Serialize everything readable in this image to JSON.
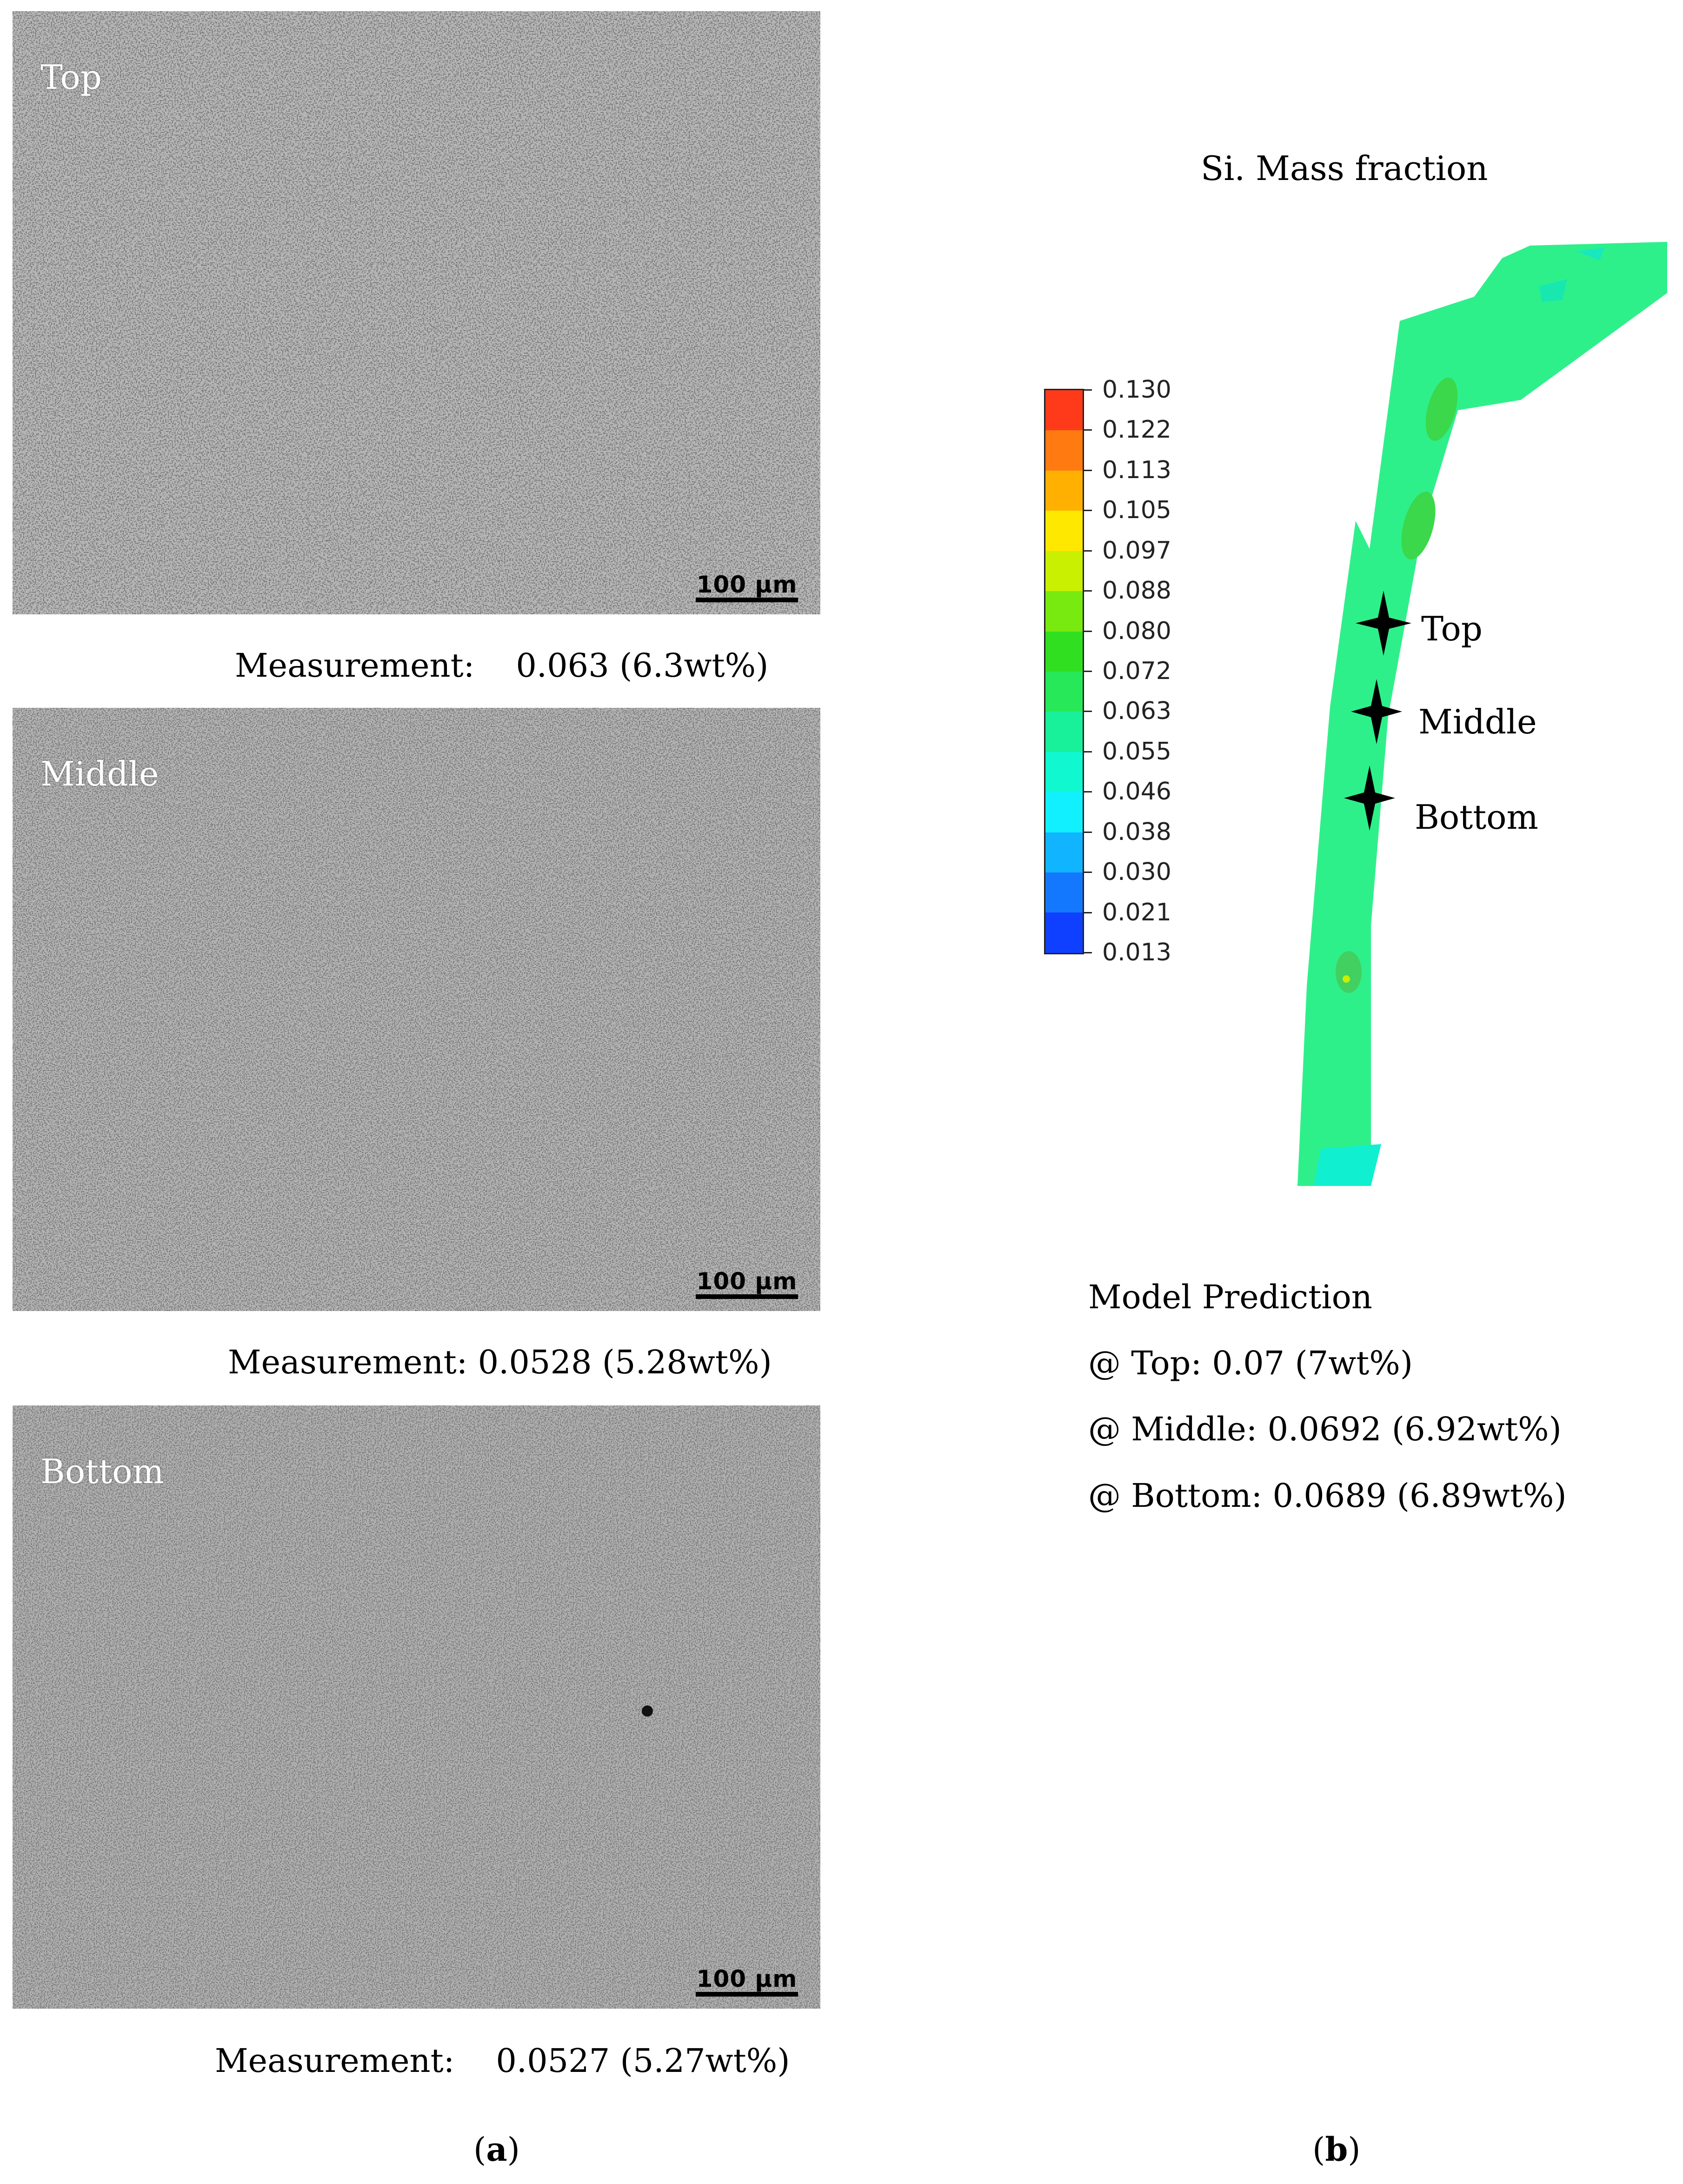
{
  "panel_a": {
    "images": [
      {
        "label": "Top",
        "scale_bar": "100 µm",
        "measurement": "Measurement:    0.063 (6.3wt%)",
        "measurement_value": 0.063
      },
      {
        "label": "Middle",
        "scale_bar": "100 µm",
        "measurement": "Measurement: 0.0528 (5.28wt%)",
        "measurement_value": 0.0528
      },
      {
        "label": "Bottom",
        "scale_bar": "100 µm",
        "measurement": "Measurement:    0.0527 (5.27wt%)",
        "measurement_value": 0.0527
      }
    ],
    "sublabel_open": "(",
    "sublabel_letter": "a",
    "sublabel_close": ")"
  },
  "panel_b": {
    "title": "Si. Mass fraction",
    "colorbar": {
      "ticks": [
        "0.130",
        "0.122",
        "0.113",
        "0.105",
        "0.097",
        "0.088",
        "0.080",
        "0.072",
        "0.063",
        "0.055",
        "0.046",
        "0.038",
        "0.030",
        "0.021",
        "0.013"
      ],
      "colors": [
        "#ff3a1a",
        "#ff7a10",
        "#ffb000",
        "#ffe800",
        "#c8f000",
        "#78ea10",
        "#30e020",
        "#26e858",
        "#18f09a",
        "#10f8d0",
        "#10f0ff",
        "#10b4ff",
        "#1478ff",
        "#1040ff",
        "#1010ff"
      ]
    },
    "field_color": "#2ef08a",
    "markers": [
      {
        "label": "Top"
      },
      {
        "label": "Middle"
      },
      {
        "label": "Bottom"
      }
    ],
    "prediction": {
      "heading": "Model Prediction",
      "lines": [
        "@ Top: 0.07 (7wt%)",
        "@ Middle: 0.0692 (6.92wt%)",
        "@ Bottom: 0.0689 (6.89wt%)"
      ]
    },
    "sublabel_open": "(",
    "sublabel_letter": "b",
    "sublabel_close": ")"
  }
}
